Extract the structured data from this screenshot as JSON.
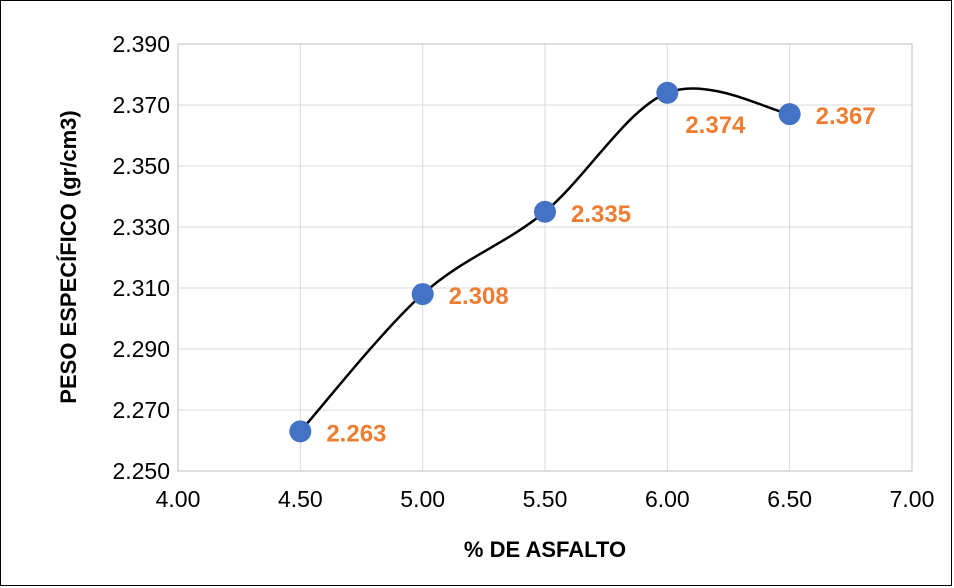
{
  "chart_data": {
    "type": "scatter",
    "title": "",
    "xlabel": "% DE ASFALTO",
    "ylabel": "PESO ESPECÍFICO (gr/cm3)",
    "xlim": [
      4.0,
      7.0
    ],
    "ylim": [
      2.25,
      2.39
    ],
    "x_ticks": [
      "4.00",
      "4.50",
      "5.00",
      "5.50",
      "6.00",
      "6.50",
      "7.00"
    ],
    "y_ticks": [
      "2.250",
      "2.270",
      "2.290",
      "2.310",
      "2.330",
      "2.350",
      "2.370",
      "2.390"
    ],
    "grid": true,
    "smoothed_line": true,
    "series": [
      {
        "x": [
          4.5,
          5.0,
          5.5,
          6.0,
          6.5
        ],
        "values": [
          2.263,
          2.308,
          2.335,
          2.374,
          2.367
        ],
        "data_labels": [
          "2.263",
          "2.308",
          "2.335",
          "2.374",
          "2.367"
        ]
      }
    ],
    "colors": {
      "marker": "#4472C4",
      "line": "#000000",
      "label": "#ED7D31",
      "grid": "#D9D9D9"
    }
  }
}
